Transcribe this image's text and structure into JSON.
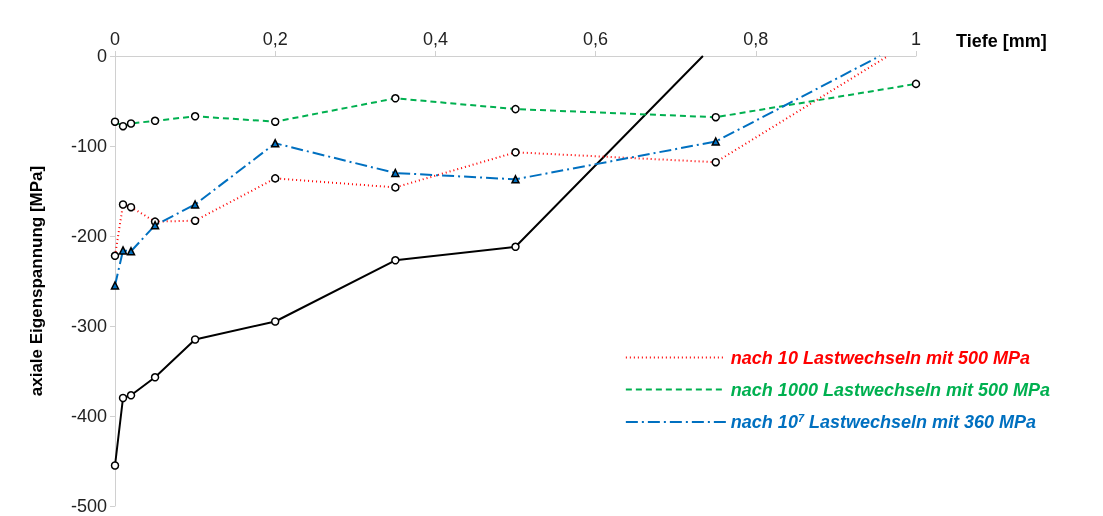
{
  "chart_data": {
    "type": "line",
    "xlabel": "Tiefe [mm]",
    "ylabel": "axiale Eigenspannung [MPa]",
    "xlim": [
      0,
      1
    ],
    "xticks": [
      0,
      {
        "value": 0.2,
        "label": "0,2"
      },
      {
        "value": 0.4,
        "label": "0,4"
      },
      {
        "value": 0.6,
        "label": "0,6"
      },
      {
        "value": 0.8,
        "label": "0,8"
      },
      1
    ],
    "ylim": [
      -500,
      0
    ],
    "yticks": [
      -500,
      -400,
      -300,
      -200,
      -100,
      0
    ],
    "grid": false,
    "legend": "bottom right",
    "series": [
      {
        "name": "nach 10 Lastwechseln mit 500 MPa",
        "color": "#ff0000",
        "line_style": "dotted",
        "marker": "circle",
        "x": [
          0,
          0.01,
          0.02,
          0.05,
          0.1,
          0.2,
          0.35,
          0.5,
          0.75,
          0.965
        ],
        "values": [
          -222,
          -165,
          -168,
          -184,
          -183,
          -136,
          -146,
          -107,
          -118,
          0
        ]
      },
      {
        "name": "nach 1000 Lastwechseln mit 500 MPa",
        "color": "#00b050",
        "line_style": "dashed",
        "marker": "circle",
        "x": [
          0,
          0.01,
          0.02,
          0.05,
          0.1,
          0.2,
          0.35,
          0.5,
          0.75,
          1
        ],
        "values": [
          -73,
          -78,
          -75,
          -72,
          -67,
          -73,
          -47,
          -59,
          -68,
          -31
        ]
      },
      {
        "name": "nach 10$^{7}$ Lastwechseln mit 360 MPa",
        "color": "#0070c0",
        "line_style": "dashdot",
        "marker": "triangle",
        "x": [
          0,
          0.01,
          0.02,
          0.05,
          0.1,
          0.2,
          0.35,
          0.5,
          0.75,
          0.955
        ],
        "values": [
          -255,
          -216,
          -217,
          -188,
          -165,
          -97,
          -130,
          -137,
          -95,
          0
        ]
      },
      {
        "color": "#000000",
        "line_style": "solid",
        "marker": "circle",
        "x": [
          0,
          0.01,
          0.02,
          0.05,
          0.1,
          0.2,
          0.35,
          0.5,
          0.734
        ],
        "values": [
          -455,
          -380,
          -377,
          -357,
          -315,
          -295,
          -227,
          -212,
          0
        ]
      }
    ]
  }
}
